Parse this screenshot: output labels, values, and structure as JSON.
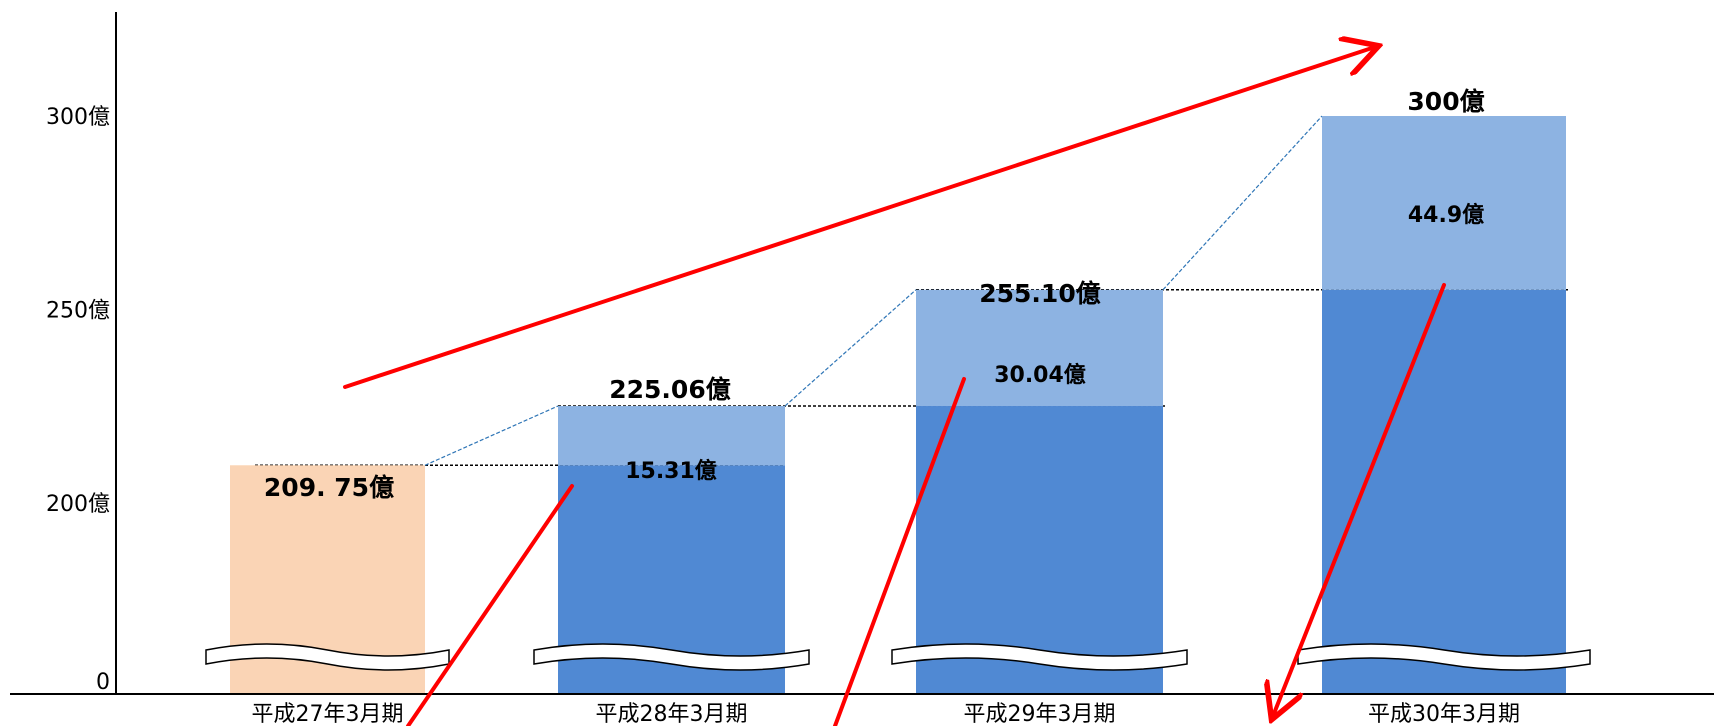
{
  "chart_data": {
    "type": "bar",
    "categories": [
      "平成27年3月期",
      "平成28年3月期",
      "平成29年3月期",
      "平成30年3月期"
    ],
    "series": [
      {
        "values": [
          209.75,
          209.75,
          225.06,
          255.1
        ]
      },
      {
        "values": [
          0,
          15.31,
          30.04,
          44.9
        ]
      }
    ],
    "totals": [
      209.75,
      225.06,
      255.1,
      300
    ],
    "total_labels": [
      "209. 75億",
      "225.06億",
      "255.10億",
      "300億"
    ],
    "increment_labels": [
      "",
      "15.31億",
      "30.04億",
      "44.9億"
    ],
    "yticks": [
      {
        "value": 0,
        "label": "0"
      },
      {
        "value": 200,
        "label": "200億"
      },
      {
        "value": 250,
        "label": "250億"
      },
      {
        "value": 300,
        "label": "300億"
      }
    ],
    "y_break": "between 0 and 200",
    "ylim": [
      180,
      330
    ],
    "colors": {
      "first_bar": "#FAD4B5",
      "base": "#5089D3",
      "increment": "#8DB3E2",
      "arrows": "#FF0000",
      "connector": "#2E75B6"
    }
  }
}
